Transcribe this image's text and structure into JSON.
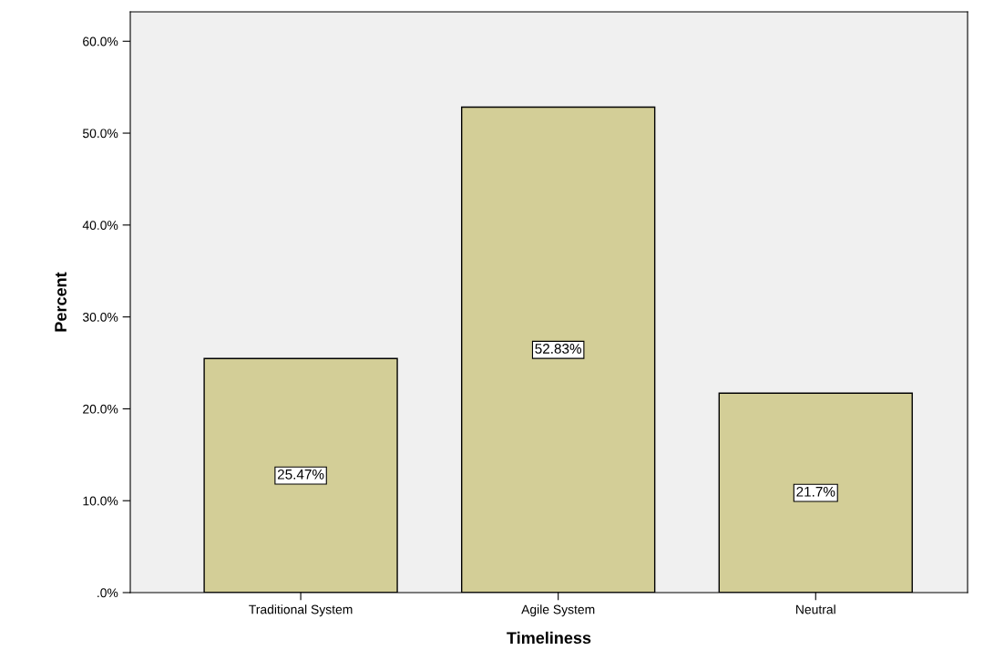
{
  "chart_data": {
    "type": "bar",
    "xlabel": "Timeliness",
    "ylabel": "Percent",
    "categories": [
      "Traditional System",
      "Agile System",
      "Neutral"
    ],
    "values": [
      25.47,
      52.83,
      21.7
    ],
    "value_labels": [
      "25.47%",
      "52.83%",
      "21.7%"
    ],
    "color": "#d3ce97",
    "ylim": [
      0,
      63.2
    ],
    "yticks": [
      {
        "value": 0,
        "label": ".0%"
      },
      {
        "value": 10,
        "label": "10.0%"
      },
      {
        "value": 20,
        "label": "20.0%"
      },
      {
        "value": 30,
        "label": "30.0%"
      },
      {
        "value": 40,
        "label": "40.0%"
      },
      {
        "value": 50,
        "label": "50.0%"
      },
      {
        "value": 60,
        "label": "60.0%"
      }
    ],
    "grid": false,
    "legend": false
  }
}
